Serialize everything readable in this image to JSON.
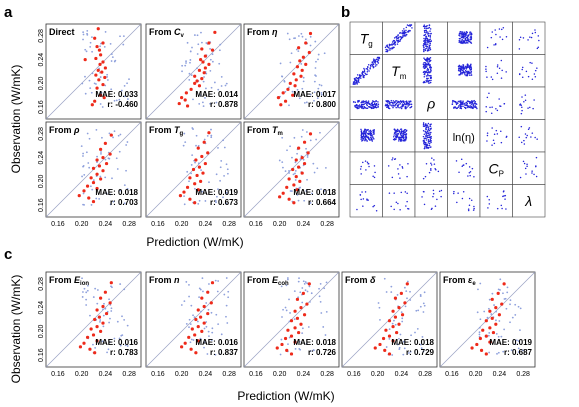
{
  "panel_labels": {
    "a": "a",
    "b": "b",
    "c": "c"
  },
  "axis": {
    "ylabel": "Observation (W/mK)",
    "xlabel": "Prediction (W/mK)",
    "ticks": [
      "0.16",
      "0.20",
      "0.24",
      "0.28"
    ],
    "tick_values": [
      0.16,
      0.2,
      0.24,
      0.28
    ]
  },
  "colors": {
    "exp": "#ee2a1a",
    "sim": "#8ea0dc",
    "matrix": "#2323d8",
    "diag": "#9aa2c4"
  },
  "chart_data": [
    {
      "type": "scatter",
      "panel": "a",
      "xlabel": "Prediction (W/mK)",
      "ylabel": "Observation (W/mK)",
      "xlim": [
        0.14,
        0.3
      ],
      "ylim": [
        0.14,
        0.3
      ],
      "grid": false,
      "subplots": [
        {
          "pre": "Direct",
          "sub": "",
          "ital": false,
          "mae": "MAE: 0.033",
          "r": "r: -0.460",
          "points": [
            [
              0.228,
              0.292
            ],
            [
              0.222,
              0.276
            ],
            [
              0.236,
              0.268
            ],
            [
              0.226,
              0.262
            ],
            [
              0.23,
              0.256
            ],
            [
              0.232,
              0.248
            ],
            [
              0.224,
              0.242
            ],
            [
              0.206,
              0.24
            ],
            [
              0.236,
              0.236
            ],
            [
              0.231,
              0.232
            ],
            [
              0.24,
              0.226
            ],
            [
              0.228,
              0.222
            ],
            [
              0.234,
              0.219
            ],
            [
              0.224,
              0.214
            ],
            [
              0.239,
              0.21
            ],
            [
              0.229,
              0.206
            ],
            [
              0.236,
              0.198
            ],
            [
              0.226,
              0.192
            ],
            [
              0.232,
              0.18
            ],
            [
              0.238,
              0.176
            ],
            [
              0.222,
              0.17
            ],
            [
              0.218,
              0.164
            ]
          ]
        },
        {
          "pre": "From ",
          "sub": "v",
          "ital": true,
          "base": "C",
          "mae": "MAE: 0.014",
          "r": "r: 0.878",
          "points": [
            [
              0.256,
              0.286
            ],
            [
              0.246,
              0.268
            ],
            [
              0.234,
              0.258
            ],
            [
              0.252,
              0.256
            ],
            [
              0.24,
              0.246
            ],
            [
              0.232,
              0.24
            ],
            [
              0.236,
              0.236
            ],
            [
              0.246,
              0.232
            ],
            [
              0.24,
              0.226
            ],
            [
              0.23,
              0.222
            ],
            [
              0.238,
              0.218
            ],
            [
              0.222,
              0.212
            ],
            [
              0.234,
              0.208
            ],
            [
              0.226,
              0.204
            ],
            [
              0.222,
              0.2
            ],
            [
              0.23,
              0.196
            ],
            [
              0.216,
              0.19
            ],
            [
              0.208,
              0.184
            ],
            [
              0.2,
              0.176
            ],
            [
              0.206,
              0.172
            ],
            [
              0.196,
              0.166
            ],
            [
              0.21,
              0.162
            ]
          ]
        },
        {
          "pre": "From ",
          "sub": "",
          "ital": true,
          "base": "η",
          "mae": "MAE: 0.017",
          "r": "r: 0.800",
          "points": [
            [
              0.252,
              0.284
            ],
            [
              0.244,
              0.268
            ],
            [
              0.232,
              0.26
            ],
            [
              0.25,
              0.252
            ],
            [
              0.24,
              0.244
            ],
            [
              0.234,
              0.238
            ],
            [
              0.244,
              0.232
            ],
            [
              0.23,
              0.228
            ],
            [
              0.238,
              0.222
            ],
            [
              0.224,
              0.216
            ],
            [
              0.236,
              0.212
            ],
            [
              0.228,
              0.206
            ],
            [
              0.218,
              0.2
            ],
            [
              0.226,
              0.196
            ],
            [
              0.214,
              0.19
            ],
            [
              0.206,
              0.184
            ],
            [
              0.222,
              0.18
            ],
            [
              0.198,
              0.176
            ],
            [
              0.21,
              0.17
            ],
            [
              0.202,
              0.164
            ]
          ]
        },
        {
          "pre": "From ",
          "sub": "",
          "ital": true,
          "base": "ρ",
          "mae": "MAE: 0.018",
          "r": "r: 0.703",
          "points": [
            [
              0.25,
              0.278
            ],
            [
              0.24,
              0.264
            ],
            [
              0.232,
              0.254
            ],
            [
              0.248,
              0.246
            ],
            [
              0.236,
              0.24
            ],
            [
              0.226,
              0.236
            ],
            [
              0.242,
              0.23
            ],
            [
              0.23,
              0.226
            ],
            [
              0.22,
              0.222
            ],
            [
              0.236,
              0.218
            ],
            [
              0.226,
              0.212
            ],
            [
              0.216,
              0.206
            ],
            [
              0.232,
              0.204
            ],
            [
              0.22,
              0.198
            ],
            [
              0.21,
              0.192
            ],
            [
              0.226,
              0.188
            ],
            [
              0.204,
              0.184
            ],
            [
              0.196,
              0.176
            ],
            [
              0.212,
              0.172
            ],
            [
              0.22,
              0.166
            ]
          ]
        },
        {
          "pre": "From ",
          "sub": "g",
          "ital": true,
          "base": "T",
          "mae": "MAE: 0.019",
          "r": "r: 0.673",
          "points": [
            [
              0.246,
              0.282
            ],
            [
              0.238,
              0.266
            ],
            [
              0.228,
              0.256
            ],
            [
              0.244,
              0.248
            ],
            [
              0.234,
              0.242
            ],
            [
              0.224,
              0.236
            ],
            [
              0.24,
              0.23
            ],
            [
              0.23,
              0.224
            ],
            [
              0.22,
              0.22
            ],
            [
              0.236,
              0.214
            ],
            [
              0.226,
              0.21
            ],
            [
              0.214,
              0.206
            ],
            [
              0.232,
              0.2
            ],
            [
              0.222,
              0.196
            ],
            [
              0.21,
              0.19
            ],
            [
              0.228,
              0.186
            ],
            [
              0.204,
              0.182
            ],
            [
              0.198,
              0.176
            ],
            [
              0.214,
              0.17
            ],
            [
              0.222,
              0.164
            ]
          ]
        },
        {
          "pre": "From ",
          "sub": "m",
          "ital": true,
          "base": "T",
          "mae": "MAE: 0.018",
          "r": "r: 0.664",
          "points": [
            [
              0.252,
              0.28
            ],
            [
              0.242,
              0.266
            ],
            [
              0.232,
              0.256
            ],
            [
              0.248,
              0.248
            ],
            [
              0.238,
              0.24
            ],
            [
              0.228,
              0.236
            ],
            [
              0.242,
              0.23
            ],
            [
              0.232,
              0.224
            ],
            [
              0.222,
              0.22
            ],
            [
              0.238,
              0.214
            ],
            [
              0.228,
              0.208
            ],
            [
              0.216,
              0.204
            ],
            [
              0.234,
              0.2
            ],
            [
              0.224,
              0.194
            ],
            [
              0.212,
              0.19
            ],
            [
              0.23,
              0.186
            ],
            [
              0.206,
              0.18
            ],
            [
              0.2,
              0.174
            ],
            [
              0.216,
              0.17
            ],
            [
              0.224,
              0.164
            ]
          ]
        }
      ]
    },
    {
      "type": "scatter",
      "panel": "b",
      "labels": [
        {
          "base": "T",
          "sub": "g",
          "ital": true
        },
        {
          "base": "T",
          "sub": "m",
          "ital": true
        },
        {
          "base": "ρ",
          "sub": "",
          "ital": true
        },
        {
          "base": "ln(η)",
          "sub": "",
          "ital": false
        },
        {
          "base": "C",
          "sub": "P",
          "ital": true
        },
        {
          "base": "λ",
          "sub": "",
          "ital": true
        }
      ]
    },
    {
      "type": "scatter",
      "panel": "c",
      "xlabel": "Prediction (W/mK)",
      "ylabel": "Observation (W/mK)",
      "xlim": [
        0.14,
        0.3
      ],
      "ylim": [
        0.14,
        0.3
      ],
      "grid": false,
      "subplots": [
        {
          "pre": "From ",
          "sub": "ion",
          "ital": true,
          "base": "E",
          "mae": "MAE: 0.016",
          "r": "r: 0.783",
          "points": [
            [
              0.25,
              0.282
            ],
            [
              0.24,
              0.266
            ],
            [
              0.232,
              0.256
            ],
            [
              0.248,
              0.248
            ],
            [
              0.236,
              0.242
            ],
            [
              0.226,
              0.236
            ],
            [
              0.242,
              0.23
            ],
            [
              0.23,
              0.224
            ],
            [
              0.222,
              0.22
            ],
            [
              0.236,
              0.214
            ],
            [
              0.226,
              0.208
            ],
            [
              0.216,
              0.204
            ],
            [
              0.232,
              0.2
            ],
            [
              0.22,
              0.194
            ],
            [
              0.21,
              0.19
            ],
            [
              0.226,
              0.184
            ],
            [
              0.204,
              0.18
            ],
            [
              0.198,
              0.174
            ],
            [
              0.214,
              0.17
            ],
            [
              0.222,
              0.164
            ]
          ]
        },
        {
          "pre": "From ",
          "sub": "",
          "ital": true,
          "base": "n",
          "mae": "MAE: 0.016",
          "r": "r: 0.837",
          "points": [
            [
              0.252,
              0.282
            ],
            [
              0.244,
              0.266
            ],
            [
              0.234,
              0.256
            ],
            [
              0.25,
              0.248
            ],
            [
              0.238,
              0.242
            ],
            [
              0.228,
              0.236
            ],
            [
              0.244,
              0.23
            ],
            [
              0.232,
              0.224
            ],
            [
              0.224,
              0.22
            ],
            [
              0.238,
              0.214
            ],
            [
              0.228,
              0.208
            ],
            [
              0.218,
              0.204
            ],
            [
              0.234,
              0.2
            ],
            [
              0.222,
              0.194
            ],
            [
              0.212,
              0.19
            ],
            [
              0.228,
              0.184
            ],
            [
              0.206,
              0.18
            ],
            [
              0.2,
              0.174
            ],
            [
              0.216,
              0.17
            ],
            [
              0.224,
              0.164
            ]
          ]
        },
        {
          "pre": "From ",
          "sub": "coh",
          "ital": true,
          "base": "E",
          "mae": "MAE: 0.018",
          "r": "r: 0.726",
          "points": [
            [
              0.25,
              0.28
            ],
            [
              0.24,
              0.264
            ],
            [
              0.23,
              0.254
            ],
            [
              0.246,
              0.246
            ],
            [
              0.236,
              0.24
            ],
            [
              0.226,
              0.234
            ],
            [
              0.242,
              0.228
            ],
            [
              0.23,
              0.222
            ],
            [
              0.22,
              0.218
            ],
            [
              0.236,
              0.212
            ],
            [
              0.226,
              0.206
            ],
            [
              0.214,
              0.202
            ],
            [
              0.232,
              0.198
            ],
            [
              0.22,
              0.192
            ],
            [
              0.21,
              0.188
            ],
            [
              0.226,
              0.182
            ],
            [
              0.204,
              0.178
            ],
            [
              0.196,
              0.172
            ],
            [
              0.212,
              0.168
            ],
            [
              0.22,
              0.162
            ]
          ]
        },
        {
          "pre": "From ",
          "sub": "",
          "ital": true,
          "base": "δ",
          "mae": "MAE: 0.018",
          "r": "r: 0.729",
          "points": [
            [
              0.25,
              0.28
            ],
            [
              0.24,
              0.264
            ],
            [
              0.23,
              0.256
            ],
            [
              0.246,
              0.248
            ],
            [
              0.236,
              0.24
            ],
            [
              0.226,
              0.234
            ],
            [
              0.242,
              0.228
            ],
            [
              0.23,
              0.224
            ],
            [
              0.22,
              0.218
            ],
            [
              0.236,
              0.212
            ],
            [
              0.226,
              0.208
            ],
            [
              0.214,
              0.202
            ],
            [
              0.232,
              0.198
            ],
            [
              0.22,
              0.192
            ],
            [
              0.21,
              0.188
            ],
            [
              0.226,
              0.184
            ],
            [
              0.204,
              0.178
            ],
            [
              0.196,
              0.172
            ],
            [
              0.212,
              0.168
            ],
            [
              0.22,
              0.162
            ]
          ]
        },
        {
          "pre": "From ",
          "sub": "e",
          "ital": true,
          "base": "ε",
          "mae": "MAE: 0.019",
          "r": "r: 0.687",
          "points": [
            [
              0.248,
              0.28
            ],
            [
              0.238,
              0.264
            ],
            [
              0.228,
              0.254
            ],
            [
              0.244,
              0.246
            ],
            [
              0.234,
              0.24
            ],
            [
              0.224,
              0.234
            ],
            [
              0.24,
              0.228
            ],
            [
              0.228,
              0.222
            ],
            [
              0.218,
              0.218
            ],
            [
              0.234,
              0.212
            ],
            [
              0.224,
              0.206
            ],
            [
              0.212,
              0.202
            ],
            [
              0.23,
              0.198
            ],
            [
              0.218,
              0.192
            ],
            [
              0.208,
              0.188
            ],
            [
              0.224,
              0.182
            ],
            [
              0.202,
              0.178
            ],
            [
              0.194,
              0.172
            ],
            [
              0.21,
              0.168
            ],
            [
              0.218,
              0.162
            ]
          ]
        }
      ]
    }
  ]
}
